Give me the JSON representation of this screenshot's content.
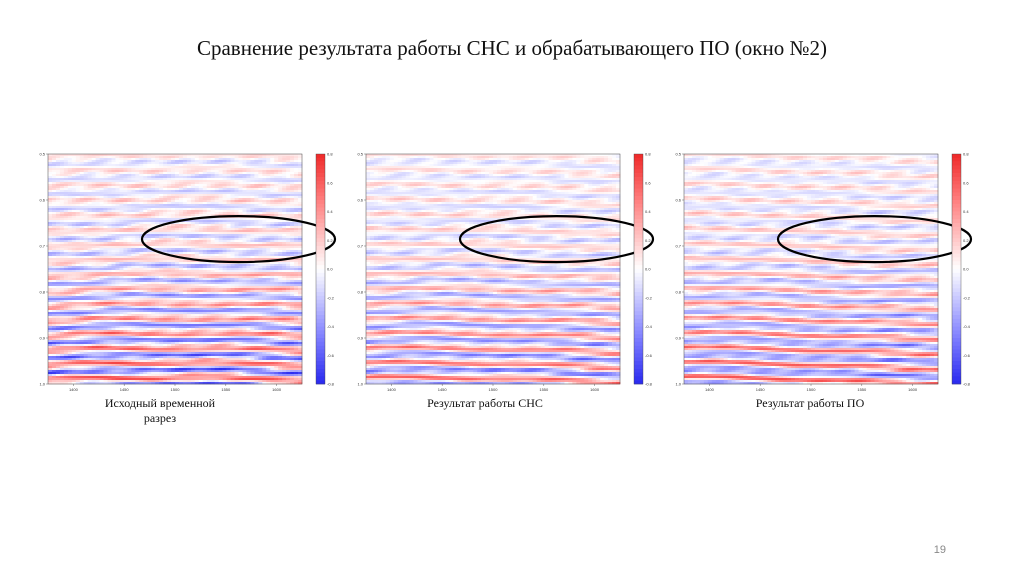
{
  "slide": {
    "title": "Сравнение результата работы СНС и обрабатывающего ПО (окно №2)",
    "page_number": "19"
  },
  "colors": {
    "positive": "#e03030",
    "negative": "#2030d0",
    "highlight_ellipse": "#000000"
  },
  "chart_data": [
    {
      "type": "heatmap",
      "caption": "Исходный временной разрез",
      "x_ticks": [
        "1400",
        "1450",
        "1500",
        "1550",
        "1600"
      ],
      "y_ticks": [
        "0.5",
        "0.6",
        "0.7",
        "0.8",
        "0.9",
        "1.0"
      ],
      "ylim": [
        0.5,
        1.0
      ],
      "colorbar": {
        "ticks": [
          "0.8",
          "0.6",
          "0.4",
          "0.2",
          "0.0",
          "-0.2",
          "-0.4",
          "-0.6",
          "-0.8"
        ],
        "range": [
          -0.8,
          0.8
        ]
      },
      "highlight": "ellipse around region near 0.68–0.72",
      "contrast": 1.0
    },
    {
      "type": "heatmap",
      "caption": "Результат работы СНС",
      "x_ticks": [
        "1400",
        "1450",
        "1500",
        "1550",
        "1600"
      ],
      "y_ticks": [
        "0.5",
        "0.6",
        "0.7",
        "0.8",
        "0.9",
        "1.0"
      ],
      "ylim": [
        0.5,
        1.0
      ],
      "colorbar": {
        "ticks": [
          "0.8",
          "0.6",
          "0.4",
          "0.2",
          "0.0",
          "-0.2",
          "-0.4",
          "-0.6",
          "-0.8"
        ],
        "range": [
          -0.8,
          0.8
        ]
      },
      "highlight": "ellipse around region near 0.68–0.72",
      "contrast": 0.85
    },
    {
      "type": "heatmap",
      "caption": "Результат работы ПО",
      "x_ticks": [
        "1400",
        "1450",
        "1500",
        "1550",
        "1600"
      ],
      "y_ticks": [
        "0.5",
        "0.6",
        "0.7",
        "0.8",
        "0.9",
        "1.0"
      ],
      "ylim": [
        0.5,
        1.0
      ],
      "colorbar": {
        "ticks": [
          "0.8",
          "0.6",
          "0.4",
          "0.2",
          "0.0",
          "-0.2",
          "-0.4",
          "-0.6",
          "-0.8"
        ],
        "range": [
          -0.8,
          0.8
        ]
      },
      "highlight": "ellipse around region near 0.68–0.72",
      "contrast": 0.9
    }
  ]
}
